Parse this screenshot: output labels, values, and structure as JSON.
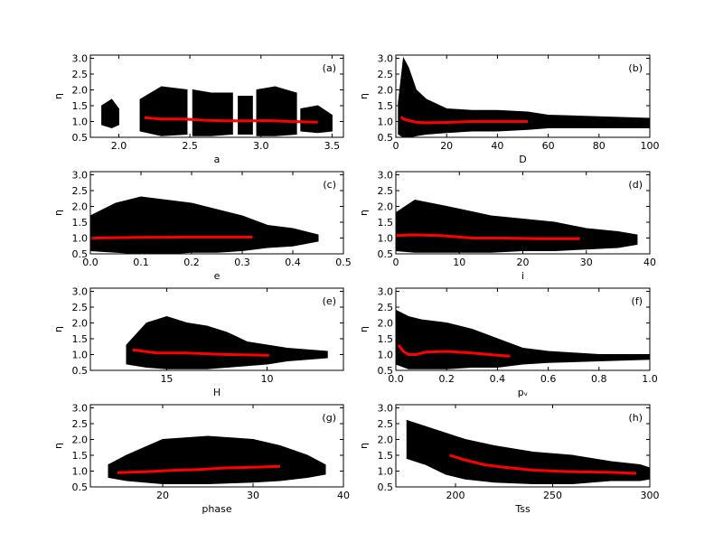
{
  "chart_data": [
    {
      "type": "scatter",
      "xlabel": "a",
      "ylabel": "η",
      "annotation": "(a)",
      "xlim": [
        1.8,
        3.58
      ],
      "xticks": [
        {
          "value": 2,
          "label": "2.0"
        },
        2.5,
        {
          "value": 3,
          "label": "3.0"
        },
        3.5
      ],
      "ylim": [
        0.5,
        3.1
      ],
      "yticks": [
        0.5,
        {
          "value": 1,
          "label": "1.0"
        },
        1.5,
        {
          "value": 2,
          "label": "2.0"
        },
        2.5,
        {
          "value": 3,
          "label": "3.0"
        }
      ],
      "cloud": {
        "color": "#000000",
        "x": [
          1.88,
          1.95,
          2.0,
          null,
          2.15,
          2.3,
          2.48,
          null,
          2.52,
          2.65,
          2.8,
          null,
          2.84,
          2.9,
          2.94,
          null,
          2.97,
          3.1,
          3.25,
          null,
          3.28,
          3.4,
          3.5
        ],
        "low": [
          0.9,
          0.8,
          0.9,
          null,
          0.7,
          0.55,
          0.6,
          null,
          0.55,
          0.55,
          0.6,
          null,
          0.6,
          0.6,
          0.6,
          null,
          0.55,
          0.55,
          0.6,
          null,
          0.7,
          0.65,
          0.7
        ],
        "high": [
          1.5,
          1.7,
          1.4,
          null,
          1.7,
          2.1,
          2.0,
          null,
          2.0,
          1.9,
          1.9,
          null,
          1.8,
          1.8,
          1.8,
          null,
          2.0,
          2.1,
          1.9,
          null,
          1.4,
          1.5,
          1.2
        ]
      },
      "trend": {
        "color": "#ff0000",
        "x": [
          2.18,
          2.3,
          2.45,
          2.6,
          2.75,
          2.9,
          3.05,
          3.2,
          3.4
        ],
        "values": [
          1.12,
          1.08,
          1.08,
          1.04,
          1.02,
          1.02,
          1.03,
          1.0,
          0.98
        ]
      }
    },
    {
      "type": "scatter",
      "xlabel": "D",
      "ylabel": "η",
      "annotation": "(b)",
      "xlim": [
        0,
        100
      ],
      "xticks": [
        0,
        20,
        40,
        60,
        80,
        100
      ],
      "ylim": [
        0.5,
        3.1
      ],
      "yticks": [
        0.5,
        {
          "value": 1,
          "label": "1.0"
        },
        1.5,
        {
          "value": 2,
          "label": "2.0"
        },
        2.5,
        {
          "value": 3,
          "label": "3.0"
        }
      ],
      "cloud": {
        "color": "#000000",
        "x": [
          1,
          3,
          5,
          8,
          12,
          20,
          30,
          40,
          52,
          60,
          80,
          100
        ],
        "low": [
          0.6,
          0.5,
          0.5,
          0.55,
          0.6,
          0.65,
          0.7,
          0.7,
          0.75,
          0.8,
          0.8,
          0.8
        ],
        "high": [
          1.6,
          3.0,
          2.7,
          2.0,
          1.7,
          1.4,
          1.35,
          1.35,
          1.3,
          1.2,
          1.15,
          1.1
        ]
      },
      "trend": {
        "color": "#ff0000",
        "x": [
          2,
          3,
          5,
          8,
          12,
          20,
          30,
          40,
          52
        ],
        "values": [
          1.15,
          1.08,
          1.03,
          0.98,
          0.96,
          0.97,
          1.0,
          1.0,
          1.0
        ]
      }
    },
    {
      "type": "scatter",
      "xlabel": "e",
      "ylabel": "η",
      "annotation": "(c)",
      "xlim": [
        0,
        0.5
      ],
      "xticks": [
        {
          "value": 0,
          "label": "0.0"
        },
        0.1,
        0.2,
        0.3,
        0.4,
        0.5
      ],
      "ylim": [
        0.5,
        3.1
      ],
      "yticks": [
        0.5,
        {
          "value": 1,
          "label": "1.0"
        },
        1.5,
        {
          "value": 2,
          "label": "2.0"
        },
        2.5,
        {
          "value": 3,
          "label": "3.0"
        }
      ],
      "cloud": {
        "color": "#000000",
        "x": [
          0,
          0.05,
          0.1,
          0.15,
          0.2,
          0.25,
          0.3,
          0.35,
          0.4,
          0.45
        ],
        "low": [
          0.6,
          0.55,
          0.5,
          0.5,
          0.55,
          0.55,
          0.6,
          0.7,
          0.75,
          0.9
        ],
        "high": [
          1.7,
          2.1,
          2.3,
          2.2,
          2.1,
          1.9,
          1.7,
          1.4,
          1.3,
          1.1
        ]
      },
      "trend": {
        "color": "#ff0000",
        "x": [
          0,
          0.1,
          0.2,
          0.32
        ],
        "values": [
          1.0,
          1.02,
          1.03,
          1.03
        ]
      }
    },
    {
      "type": "scatter",
      "xlabel": "i",
      "ylabel": "η",
      "annotation": "(d)",
      "xlim": [
        0,
        40
      ],
      "xticks": [
        0,
        10,
        20,
        30,
        40
      ],
      "ylim": [
        0.5,
        3.1
      ],
      "yticks": [
        0.5,
        {
          "value": 1,
          "label": "1.0"
        },
        1.5,
        {
          "value": 2,
          "label": "2.0"
        },
        2.5,
        {
          "value": 3,
          "label": "3.0"
        }
      ],
      "cloud": {
        "color": "#000000",
        "x": [
          0,
          3,
          8,
          15,
          20,
          25,
          30,
          35,
          38
        ],
        "low": [
          0.6,
          0.55,
          0.55,
          0.55,
          0.6,
          0.6,
          0.65,
          0.7,
          0.8
        ],
        "high": [
          1.8,
          2.2,
          2.0,
          1.7,
          1.6,
          1.5,
          1.3,
          1.2,
          1.1
        ]
      },
      "trend": {
        "color": "#ff0000",
        "x": [
          0,
          3,
          7,
          12,
          17,
          22,
          29
        ],
        "values": [
          1.08,
          1.1,
          1.08,
          1.0,
          1.0,
          0.98,
          0.98
        ]
      }
    },
    {
      "type": "scatter",
      "xlabel": "H",
      "ylabel": "η",
      "annotation": "(e)",
      "xlim": [
        18.8,
        6.2
      ],
      "xticks": [
        15,
        10
      ],
      "ylim": [
        0.5,
        3.1
      ],
      "yticks": [
        0.5,
        {
          "value": 1,
          "label": "1.0"
        },
        1.5,
        {
          "value": 2,
          "label": "2.0"
        },
        2.5,
        {
          "value": 3,
          "label": "3.0"
        }
      ],
      "cloud": {
        "color": "#000000",
        "x": [
          17,
          16,
          15,
          14,
          13,
          12,
          11,
          10,
          9,
          7
        ],
        "low": [
          0.7,
          0.6,
          0.55,
          0.55,
          0.55,
          0.6,
          0.65,
          0.7,
          0.8,
          0.9
        ],
        "high": [
          1.3,
          2.0,
          2.2,
          2.0,
          1.9,
          1.7,
          1.4,
          1.3,
          1.2,
          1.1
        ]
      },
      "trend": {
        "color": "#ff0000",
        "x": [
          16.7,
          15.5,
          14,
          12,
          10,
          9.9
        ],
        "values": [
          1.15,
          1.05,
          1.05,
          1.0,
          0.98,
          0.98
        ]
      }
    },
    {
      "type": "scatter",
      "xlabel": "pᵥ",
      "ylabel": "η",
      "annotation": "(f)",
      "xlim": [
        0,
        1
      ],
      "xticks": [
        {
          "value": 0,
          "label": "0.0"
        },
        0.2,
        0.4,
        0.6,
        0.8,
        {
          "value": 1,
          "label": "1.0"
        }
      ],
      "ylim": [
        0.5,
        3.1
      ],
      "yticks": [
        0.5,
        {
          "value": 1,
          "label": "1.0"
        },
        1.5,
        {
          "value": 2,
          "label": "2.0"
        },
        2.5,
        {
          "value": 3,
          "label": "3.0"
        }
      ],
      "cloud": {
        "color": "#000000",
        "x": [
          0,
          0.05,
          0.1,
          0.2,
          0.3,
          0.4,
          0.5,
          0.6,
          0.8,
          1.0
        ],
        "low": [
          0.7,
          0.55,
          0.55,
          0.55,
          0.6,
          0.6,
          0.7,
          0.75,
          0.8,
          0.85
        ],
        "high": [
          2.4,
          2.2,
          2.1,
          2.0,
          1.8,
          1.5,
          1.2,
          1.1,
          1.0,
          1.0
        ]
      },
      "trend": {
        "color": "#ff0000",
        "x": [
          0.01,
          0.03,
          0.05,
          0.08,
          0.12,
          0.2,
          0.3,
          0.4,
          0.45
        ],
        "values": [
          1.3,
          1.1,
          1.0,
          1.0,
          1.08,
          1.1,
          1.05,
          0.98,
          0.95
        ]
      }
    },
    {
      "type": "scatter",
      "xlabel": "phase",
      "ylabel": "η",
      "annotation": "(g)",
      "xlim": [
        12,
        40
      ],
      "xticks": [
        20,
        30,
        40
      ],
      "ylim": [
        0.5,
        3.1
      ],
      "yticks": [
        0.5,
        {
          "value": 1,
          "label": "1.0"
        },
        1.5,
        {
          "value": 2,
          "label": "2.0"
        },
        2.5,
        {
          "value": 3,
          "label": "3.0"
        }
      ],
      "cloud": {
        "color": "#000000",
        "x": [
          14,
          16,
          20,
          25,
          30,
          33,
          36,
          38
        ],
        "low": [
          0.8,
          0.7,
          0.6,
          0.6,
          0.65,
          0.7,
          0.8,
          0.9
        ],
        "high": [
          1.2,
          1.5,
          2.0,
          2.1,
          2.0,
          1.8,
          1.5,
          1.2
        ]
      },
      "trend": {
        "color": "#ff0000",
        "x": [
          15,
          18,
          21,
          24,
          27,
          30,
          33
        ],
        "values": [
          0.95,
          0.98,
          1.02,
          1.05,
          1.1,
          1.12,
          1.15
        ]
      }
    },
    {
      "type": "scatter",
      "xlabel": "Tss",
      "ylabel": "η",
      "annotation": "(h)",
      "xlim": [
        169.3,
        300
      ],
      "xticks": [
        200,
        250,
        300
      ],
      "ylim": [
        0.5,
        3.1
      ],
      "yticks": [
        0.5,
        {
          "value": 1,
          "label": "1.0"
        },
        1.5,
        {
          "value": 2,
          "label": "2.0"
        },
        2.5,
        {
          "value": 3,
          "label": "3.0"
        }
      ],
      "cloud": {
        "color": "#000000",
        "x": [
          175,
          185,
          195,
          205,
          220,
          240,
          260,
          280,
          295,
          300
        ],
        "low": [
          1.4,
          1.2,
          0.9,
          0.75,
          0.65,
          0.6,
          0.6,
          0.7,
          0.7,
          0.75
        ],
        "high": [
          2.6,
          2.4,
          2.2,
          2.0,
          1.8,
          1.6,
          1.5,
          1.3,
          1.2,
          1.1
        ]
      },
      "trend": {
        "color": "#ff0000",
        "x": [
          197,
          205,
          215,
          225,
          240,
          260,
          280,
          293
        ],
        "values": [
          1.5,
          1.35,
          1.2,
          1.12,
          1.03,
          0.98,
          0.96,
          0.93
        ]
      }
    }
  ]
}
